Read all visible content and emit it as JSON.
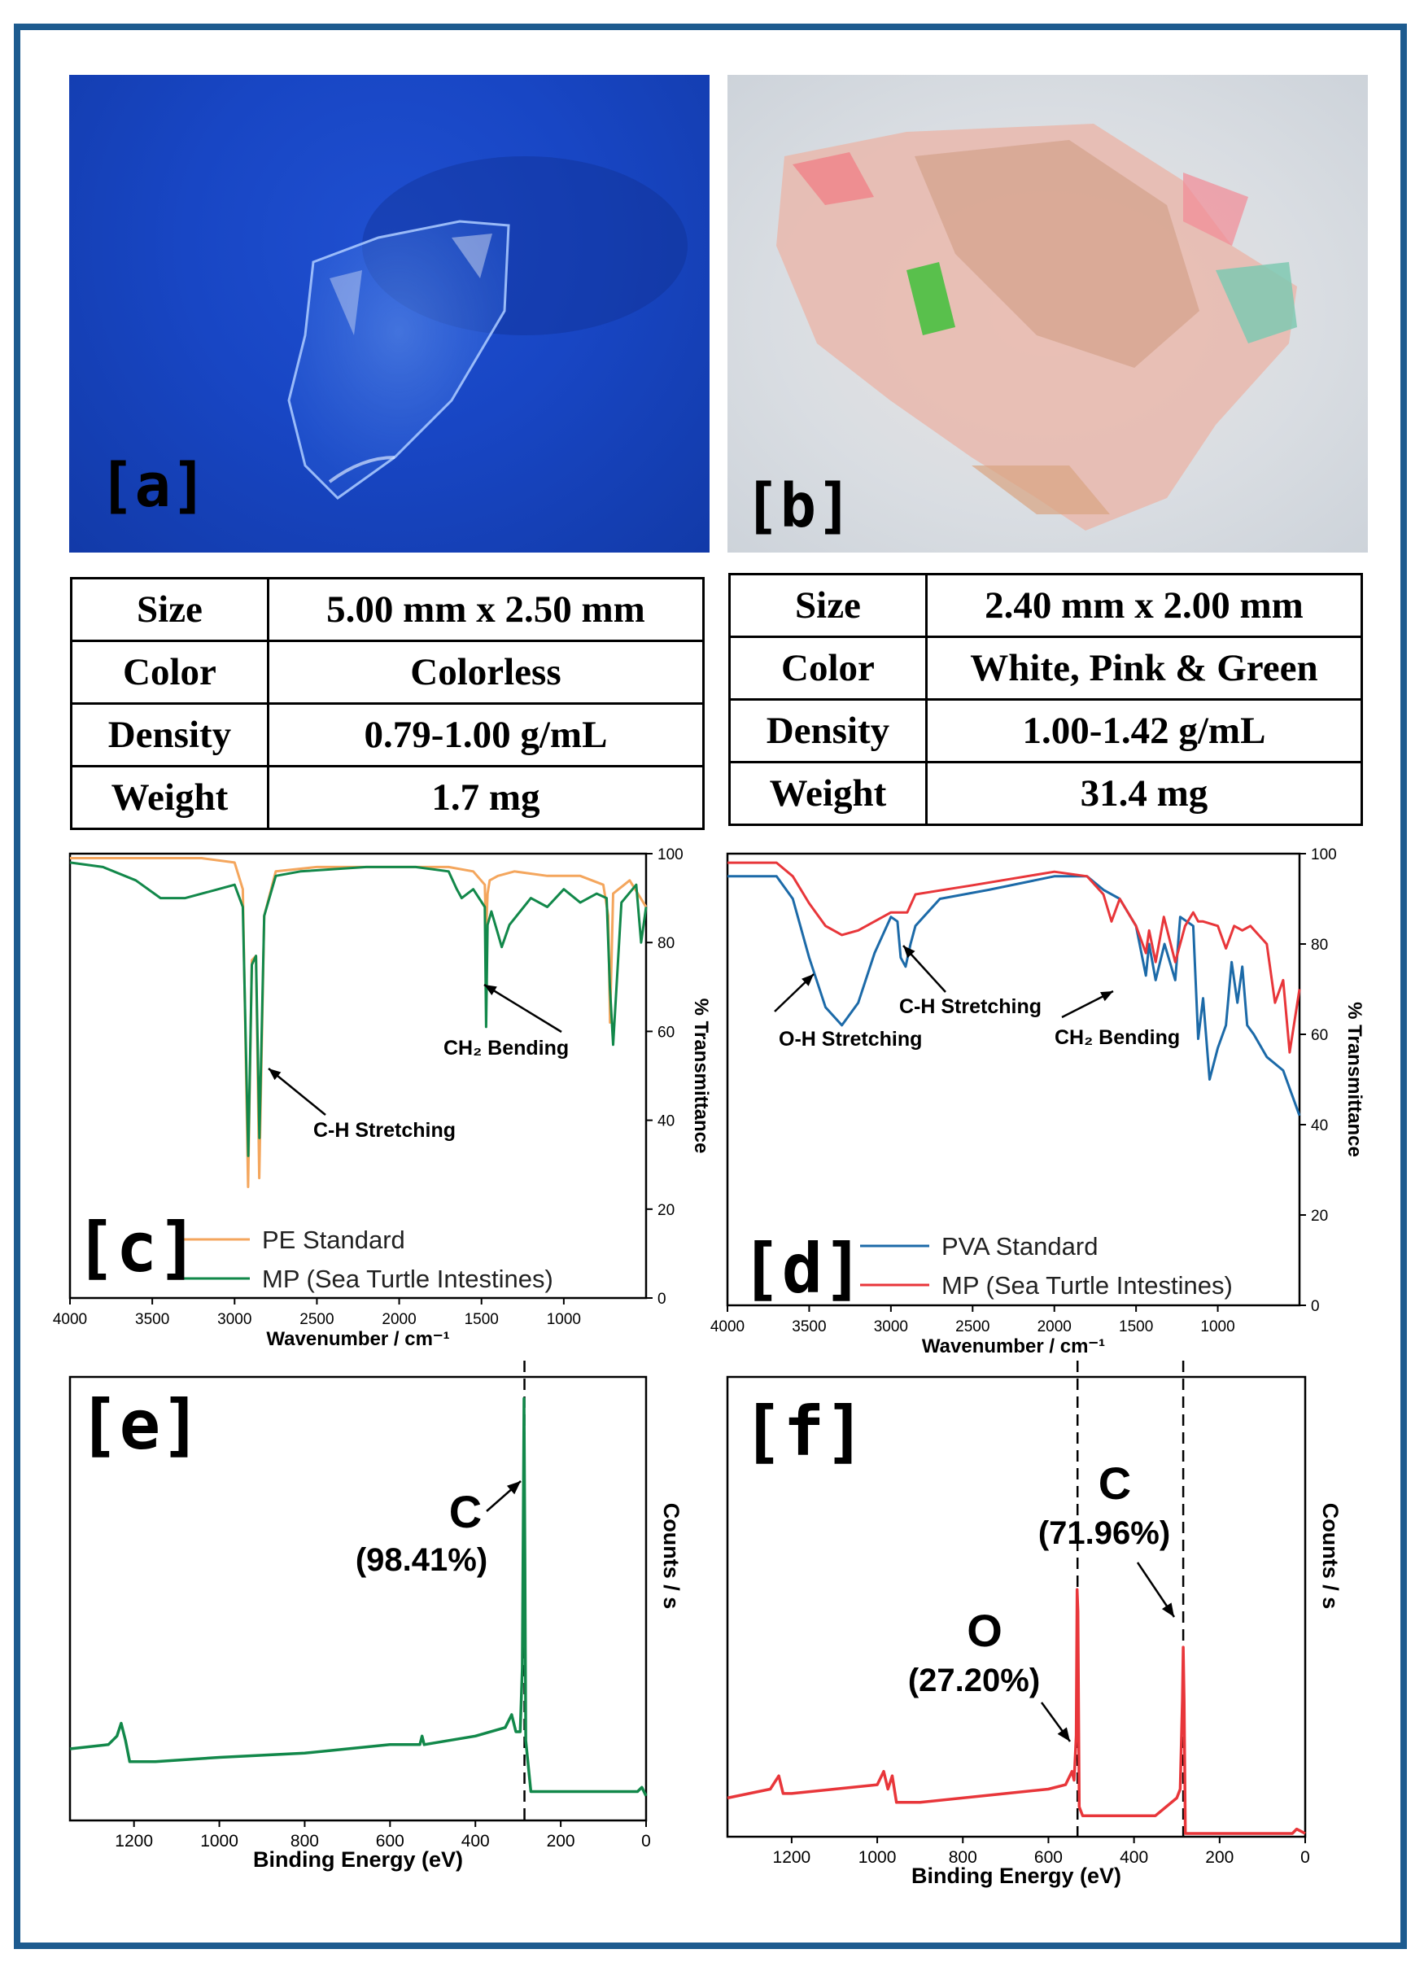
{
  "panels": {
    "a": {
      "tag": "[a]"
    },
    "b": {
      "tag": "[b]"
    },
    "c": {
      "tag": "[c]"
    },
    "d": {
      "tag": "[d]"
    },
    "e": {
      "tag": "[e]"
    },
    "f": {
      "tag": "[f]"
    }
  },
  "table_a": [
    {
      "key": "Size",
      "value": "5.00 mm x 2.50 mm"
    },
    {
      "key": "Color",
      "value": "Colorless"
    },
    {
      "key": "Density",
      "value": "0.79-1.00 g/mL"
    },
    {
      "key": "Weight",
      "value": "1.7 mg"
    }
  ],
  "table_b": [
    {
      "key": "Size",
      "value": "2.40 mm x 2.00 mm"
    },
    {
      "key": "Color",
      "value": "White, Pink & Green"
    },
    {
      "key": "Density",
      "value": "1.00-1.42 g/mL"
    },
    {
      "key": "Weight",
      "value": "31.4 mg"
    }
  ],
  "chart_data": [
    {
      "panel": "c",
      "type": "line",
      "xlabel": "Wavenumber / cm⁻¹",
      "ylabel": "% Transmittance",
      "xlim": [
        4000,
        500
      ],
      "ylim": [
        0,
        100
      ],
      "xticks": [
        4000,
        3500,
        3000,
        2500,
        2000,
        1500,
        1000
      ],
      "yticks": [
        0,
        20,
        40,
        60,
        80,
        100
      ],
      "legend_position": "bottom-left",
      "annotations": [
        "C-H Stretching",
        "CH₂ Bending"
      ],
      "series": [
        {
          "name": "PE Standard",
          "color": "#f4a65d",
          "x": [
            4000,
            3700,
            3200,
            3000,
            2950,
            2918,
            2895,
            2870,
            2850,
            2820,
            2750,
            2500,
            2000,
            1700,
            1550,
            1480,
            1472,
            1463,
            1450,
            1400,
            1300,
            1100,
            900,
            760,
            730,
            719,
            700,
            600,
            500
          ],
          "y": [
            99,
            99,
            99,
            98,
            92,
            25,
            76,
            77,
            27,
            86,
            96,
            97,
            97,
            97,
            96,
            93,
            82,
            91,
            94,
            95,
            96,
            95,
            95,
            93,
            86,
            62,
            91,
            94,
            88
          ]
        },
        {
          "name": "MP (Sea Turtle Intestines)",
          "color": "#12884a",
          "x": [
            4000,
            3800,
            3600,
            3450,
            3300,
            3100,
            3000,
            2950,
            2917,
            2895,
            2870,
            2849,
            2820,
            2750,
            2600,
            2200,
            1900,
            1700,
            1650,
            1620,
            1550,
            1480,
            1472,
            1463,
            1440,
            1400,
            1377,
            1330,
            1200,
            1100,
            1000,
            900,
            800,
            740,
            720,
            700,
            650,
            560,
            530,
            500
          ],
          "y": [
            98,
            97,
            94,
            90,
            90,
            92,
            93,
            88,
            32,
            75,
            77,
            36,
            86,
            95,
            96,
            97,
            97,
            96,
            92,
            90,
            92,
            88,
            61,
            84,
            87,
            82,
            79,
            84,
            90,
            88,
            92,
            89,
            91,
            90,
            70,
            57,
            89,
            93,
            80,
            88
          ]
        }
      ]
    },
    {
      "panel": "d",
      "type": "line",
      "xlabel": "Wavenumber / cm⁻¹",
      "ylabel": "% Transmittance",
      "xlim": [
        4000,
        500
      ],
      "ylim": [
        0,
        100
      ],
      "xticks": [
        4000,
        3500,
        3000,
        2500,
        2000,
        1500,
        1000
      ],
      "yticks": [
        0,
        20,
        40,
        60,
        80,
        100
      ],
      "legend_position": "bottom-left",
      "annotations": [
        "O-H Stretching",
        "C-H Stretching",
        "CH₂ Bending"
      ],
      "series": [
        {
          "name": "PVA Standard",
          "color": "#1c6aa8",
          "x": [
            4000,
            3700,
            3600,
            3500,
            3400,
            3300,
            3200,
            3100,
            3000,
            2960,
            2940,
            2910,
            2880,
            2850,
            2700,
            2400,
            2000,
            1800,
            1700,
            1600,
            1500,
            1440,
            1420,
            1380,
            1326,
            1260,
            1230,
            1150,
            1120,
            1090,
            1050,
            1000,
            950,
            915,
            880,
            850,
            820,
            780,
            700,
            600,
            550,
            500
          ],
          "y": [
            95,
            95,
            90,
            77,
            66,
            62,
            67,
            78,
            86,
            85,
            77,
            75,
            80,
            84,
            90,
            92,
            95,
            95,
            92,
            90,
            84,
            73,
            80,
            72,
            80,
            72,
            86,
            84,
            59,
            68,
            50,
            57,
            62,
            76,
            67,
            75,
            62,
            60,
            55,
            52,
            47,
            42
          ]
        },
        {
          "name": "MP (Sea Turtle Intestines)",
          "color": "#e8363a",
          "x": [
            4000,
            3700,
            3600,
            3500,
            3400,
            3300,
            3200,
            3000,
            2900,
            2850,
            2500,
            2000,
            1800,
            1700,
            1650,
            1600,
            1500,
            1440,
            1420,
            1380,
            1330,
            1260,
            1200,
            1150,
            1120,
            1090,
            1000,
            950,
            900,
            850,
            800,
            700,
            650,
            600,
            560,
            500
          ],
          "y": [
            98,
            98,
            95,
            89,
            84,
            82,
            83,
            87,
            87,
            91,
            93,
            96,
            95,
            91,
            85,
            90,
            84,
            78,
            83,
            76,
            86,
            76,
            84,
            87,
            85,
            85,
            84,
            79,
            84,
            83,
            84,
            80,
            67,
            72,
            56,
            70
          ]
        }
      ]
    },
    {
      "panel": "e",
      "type": "line",
      "xlabel": "Binding Energy (eV)",
      "ylabel": "Counts / s",
      "xlim": [
        1350,
        0
      ],
      "ylim": [
        0,
        100
      ],
      "xticks": [
        1200,
        1000,
        800,
        600,
        400,
        200,
        0
      ],
      "reference_lines_x": [
        285
      ],
      "annotations": [
        {
          "element": "C",
          "percent": "(98.41%)",
          "x": 285
        }
      ],
      "series": [
        {
          "name": "",
          "color": "#12884a",
          "x": [
            1350,
            1260,
            1240,
            1230,
            1220,
            1210,
            1150,
            1000,
            800,
            600,
            530,
            525,
            520,
            400,
            330,
            315,
            305,
            295,
            290,
            286,
            284,
            282,
            270,
            200,
            100,
            20,
            10,
            0
          ],
          "y": [
            16,
            17,
            19,
            22,
            18,
            13,
            13,
            14,
            15,
            17,
            17,
            19,
            17,
            19,
            21,
            24,
            20,
            20,
            35,
            98,
            60,
            18,
            6,
            6,
            6,
            6,
            7,
            5
          ]
        }
      ]
    },
    {
      "panel": "f",
      "type": "line",
      "xlabel": "Binding Energy (eV)",
      "ylabel": "Counts / s",
      "xlim": [
        1350,
        0
      ],
      "ylim": [
        0,
        100
      ],
      "xticks": [
        1200,
        1000,
        800,
        600,
        400,
        200,
        0
      ],
      "reference_lines_x": [
        532,
        285
      ],
      "annotations": [
        {
          "element": "O",
          "percent": "(27.20%)",
          "x": 532
        },
        {
          "element": "C",
          "percent": "(71.96%)",
          "x": 285
        }
      ],
      "series": [
        {
          "name": "",
          "color": "#e8363a",
          "x": [
            1350,
            1250,
            1230,
            1220,
            1200,
            1100,
            1000,
            985,
            975,
            965,
            955,
            900,
            700,
            600,
            560,
            545,
            540,
            535,
            533,
            531,
            528,
            520,
            450,
            350,
            300,
            292,
            287,
            285,
            283,
            280,
            270,
            150,
            30,
            20,
            0
          ],
          "y": [
            8,
            10,
            13,
            9,
            9,
            10,
            11,
            14,
            10,
            13,
            7,
            7,
            9,
            10,
            11,
            14,
            12,
            22,
            55,
            50,
            6,
            4,
            4,
            4,
            8,
            10,
            30,
            42,
            30,
            0,
            0,
            0,
            0,
            1,
            0
          ]
        }
      ]
    }
  ]
}
